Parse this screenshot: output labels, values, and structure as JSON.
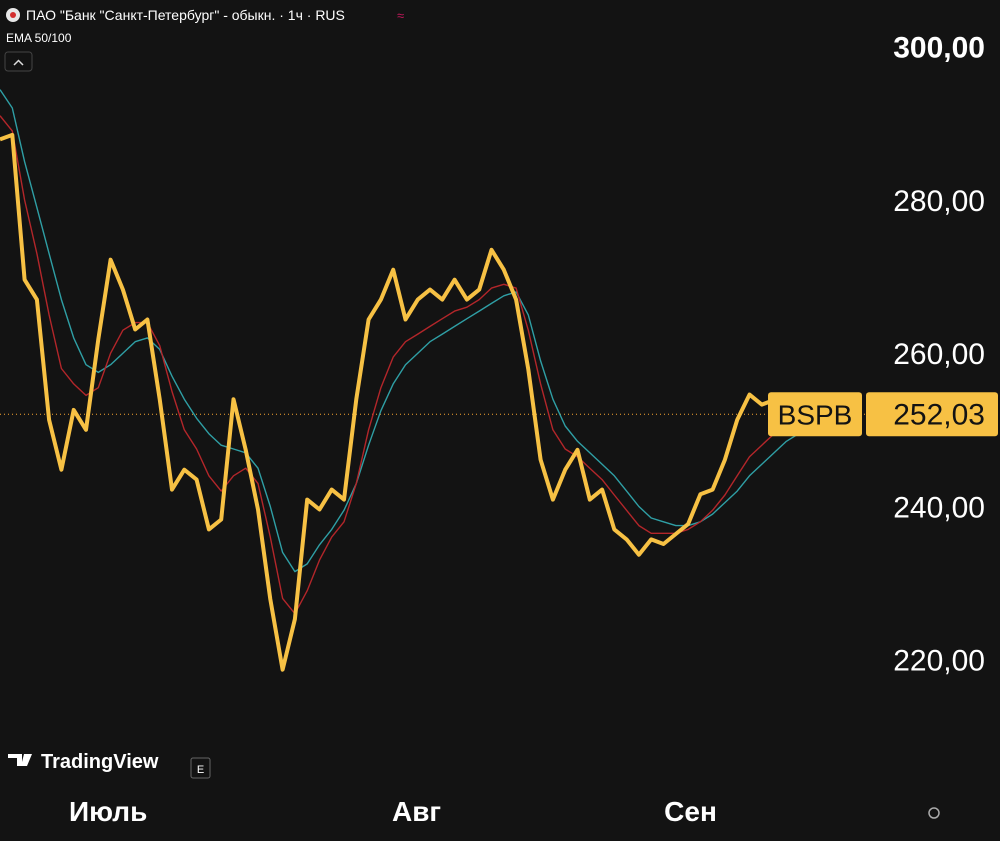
{
  "chart_data": {
    "type": "line",
    "title": "ПАО \"Банк \"Санкт-Петербург\" - обыкн. · 1ч · RUS",
    "subtitle": "EMA 50/100",
    "brand": "TradingView",
    "button": "E",
    "x": [
      0,
      1,
      2,
      3,
      4,
      5,
      6,
      7,
      8,
      9,
      10,
      11,
      12,
      13,
      14,
      15,
      16,
      17,
      18,
      19,
      20,
      21,
      22,
      23,
      24,
      25,
      26,
      27,
      28,
      29,
      30,
      31,
      32,
      33,
      34,
      35,
      36,
      37,
      38,
      39,
      40,
      41,
      42,
      43,
      44,
      45,
      46,
      47,
      48,
      49,
      50,
      51,
      52,
      53,
      54,
      55,
      56,
      57,
      58,
      59,
      60,
      61,
      62,
      63,
      64,
      65,
      66,
      67,
      68
    ],
    "xlim": [
      0,
      70.4
    ],
    "xticks": [
      {
        "value": 8.8,
        "label": "Июль"
      },
      {
        "value": 33.9,
        "label": "Авг"
      },
      {
        "value": 56.2,
        "label": "Сен"
      }
    ],
    "ylim": [
      204.3,
      306.1
    ],
    "yticks": [
      {
        "value": 220,
        "label": "220,00"
      },
      {
        "value": 240,
        "label": "240,00"
      },
      {
        "value": 260,
        "label": "260,00"
      },
      {
        "value": 280,
        "label": "280,00"
      },
      {
        "value": 300,
        "label": "300,00"
      }
    ],
    "last_price": {
      "value": 252.03,
      "label": "252,03"
    },
    "series": [
      {
        "name": "BSPB",
        "color": "#f7c144",
        "values": [
          287.9,
          288.5,
          269.6,
          267,
          251.3,
          244.8,
          252.6,
          250,
          261.8,
          272.2,
          268.3,
          263.1,
          264.4,
          254,
          242.2,
          244.8,
          243.5,
          237,
          238.3,
          254,
          247.4,
          239.6,
          227.9,
          218.7,
          225.3,
          240.9,
          239.6,
          242.2,
          240.9,
          254,
          264.4,
          267,
          270.9,
          264.4,
          267,
          268.3,
          267,
          269.6,
          267,
          268.3,
          273.5,
          270.9,
          267,
          257.9,
          246.1,
          240.9,
          244.8,
          247.4,
          240.9,
          242.2,
          237,
          235.7,
          233.7,
          235.7,
          235.1,
          236.4,
          237.7,
          241.6,
          242.2,
          246.1,
          251.3,
          254.6,
          253.3,
          253.9,
          253.9,
          254.1,
          253.9,
          254.6,
          252.03
        ]
      },
      {
        "color": "#b3262a",
        "values": [
          291,
          289,
          280,
          273,
          265,
          258,
          256,
          254.5,
          255.5,
          260,
          263,
          264,
          264,
          261,
          255,
          250,
          247.5,
          244,
          242,
          244,
          245,
          243,
          236,
          228,
          226,
          229,
          233,
          236,
          238,
          243,
          250,
          255.5,
          259.5,
          261.5,
          262.5,
          263.5,
          264.5,
          265.5,
          266,
          267,
          268.5,
          269,
          268.5,
          263,
          256,
          250,
          247.5,
          246.5,
          245,
          243.5,
          241.5,
          239.5,
          237.5,
          236.5,
          236.5,
          236.5,
          237,
          238,
          239.5,
          241.5,
          244,
          246.5,
          248,
          249.5,
          250.5,
          251.3,
          251.8,
          252.2,
          252
        ]
      },
      {
        "color": "#2f9fa5",
        "values": [
          294.4,
          292,
          285,
          279,
          273,
          267,
          262,
          258.5,
          257.5,
          258.5,
          260,
          261.5,
          262,
          260.5,
          257,
          254,
          251.5,
          249.5,
          248,
          247.5,
          247,
          245,
          240,
          234,
          231.5,
          232.5,
          235,
          237,
          239.5,
          243,
          248,
          252.5,
          256,
          258.5,
          260,
          261.5,
          262.5,
          263.5,
          264.5,
          265.5,
          266.5,
          267.5,
          268,
          265,
          259,
          254,
          250.5,
          248.5,
          247,
          245.5,
          244,
          242,
          240,
          238.5,
          238,
          237.5,
          237.5,
          238,
          239,
          240.5,
          242,
          244,
          245.5,
          247,
          248.5,
          249.5,
          250.3,
          251,
          251.5
        ]
      }
    ]
  }
}
